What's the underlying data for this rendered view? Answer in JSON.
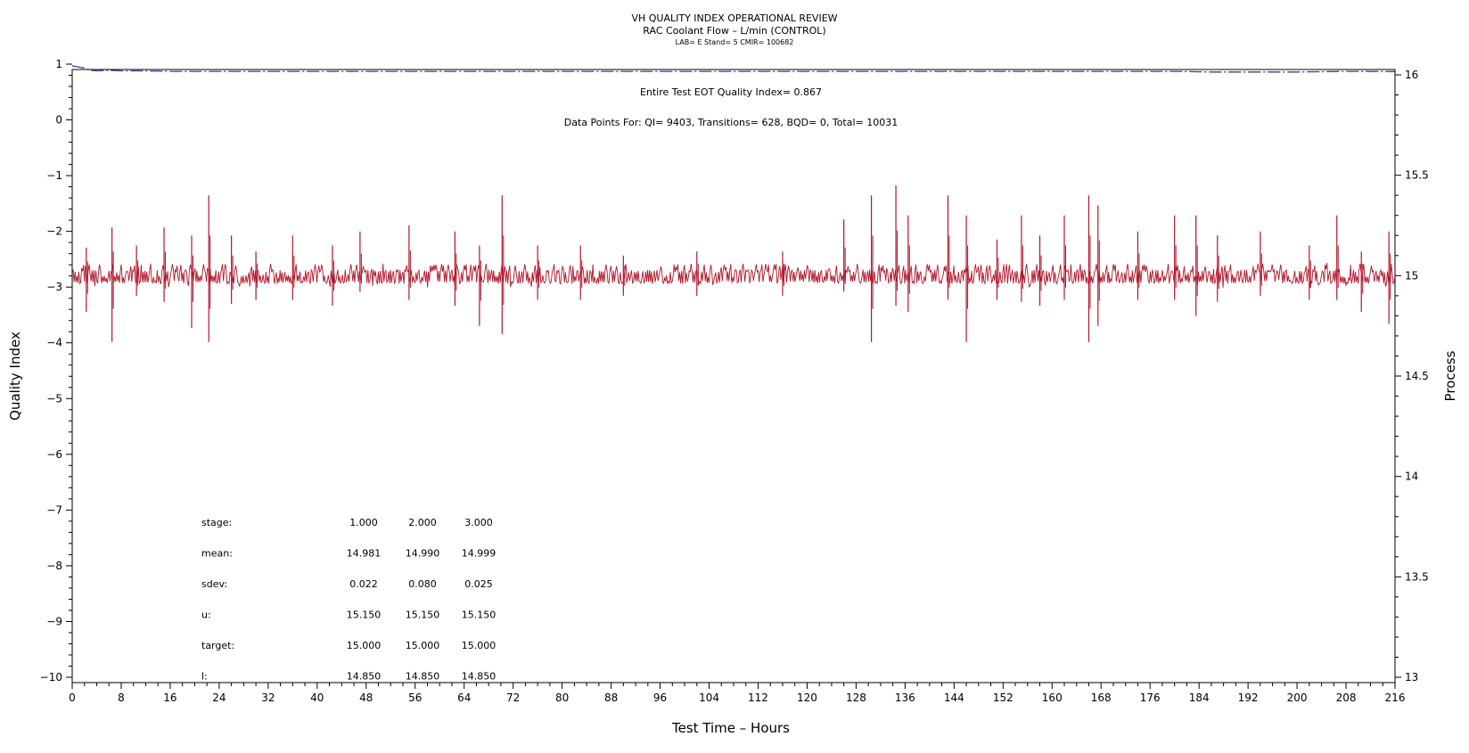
{
  "chart_data": {
    "type": "line",
    "title": "VH QUALITY INDEX OPERATIONAL REVIEW",
    "subtitle": "RAC Coolant Flow – L/min (CONTROL)",
    "subtitle2": "LAB= E Stand= 5 CMIR= 100682",
    "xlabel": "Test Time – Hours",
    "ylabel": "Quality Index",
    "y2label": "Process",
    "xlim": [
      0,
      216
    ],
    "ylim": [
      -10,
      1
    ],
    "y2lim": [
      13,
      16
    ],
    "x_ticks": [
      "0",
      "8",
      "16",
      "24",
      "32",
      "40",
      "48",
      "56",
      "64",
      "72",
      "80",
      "88",
      "96",
      "104",
      "112",
      "120",
      "128",
      "136",
      "144",
      "152",
      "160",
      "168",
      "176",
      "184",
      "192",
      "200",
      "208",
      "216"
    ],
    "y_ticks": [
      "1",
      "0",
      "−1",
      "−2",
      "−3",
      "−4",
      "−5",
      "−6",
      "−7",
      "−8",
      "−9",
      "−10"
    ],
    "y2_ticks": [
      "16",
      "15.5",
      "15",
      "14.5",
      "14",
      "13.5",
      "13"
    ],
    "annotations": {
      "eot": "Entire Test EOT Quality Index=    0.867",
      "points": "Data Points For: QI=  9403, Transitions=   628, BQD=     0, Total= 10031"
    },
    "stats_table": {
      "rows": [
        {
          "label": "stage:",
          "values": [
            "1.000",
            "2.000",
            "3.000"
          ]
        },
        {
          "label": "mean:",
          "values": [
            "14.981",
            "14.990",
            "14.999"
          ]
        },
        {
          "label": "sdev:",
          "values": [
            "0.022",
            "0.080",
            "0.025"
          ]
        },
        {
          "label": "u:",
          "values": [
            "15.150",
            "15.150",
            "15.150"
          ]
        },
        {
          "label": "target:",
          "values": [
            "15.000",
            "15.000",
            "15.000"
          ]
        },
        {
          "label": "l:",
          "values": [
            "14.850",
            "14.850",
            "14.850"
          ]
        }
      ]
    },
    "series": [
      {
        "axis": "left",
        "color": "#3a3aa0",
        "style": "dashed",
        "x": [
          0,
          1,
          2,
          3,
          4,
          6,
          8,
          12,
          16,
          20,
          24,
          30,
          40,
          60,
          80,
          100,
          120,
          140,
          160,
          170,
          180,
          186,
          190,
          200,
          208,
          216
        ],
        "y": [
          0.97,
          0.95,
          0.93,
          0.89,
          0.88,
          0.89,
          0.88,
          0.88,
          0.87,
          0.87,
          0.87,
          0.87,
          0.87,
          0.87,
          0.87,
          0.87,
          0.87,
          0.87,
          0.87,
          0.87,
          0.87,
          0.86,
          0.86,
          0.86,
          0.87,
          0.867
        ]
      },
      {
        "axis": "right",
        "color": "#b0172b",
        "style": "noisy",
        "baseline": 15.0,
        "band": [
          14.96,
          15.03
        ],
        "spikes": [
          {
            "x": 2.3,
            "hi": 15.14,
            "lo": 14.82
          },
          {
            "x": 6.5,
            "hi": 15.24,
            "lo": 14.67
          },
          {
            "x": 10.5,
            "hi": 15.15,
            "lo": 14.9
          },
          {
            "x": 15,
            "hi": 15.24,
            "lo": 14.87
          },
          {
            "x": 19.5,
            "hi": 15.2,
            "lo": 14.74
          },
          {
            "x": 22.3,
            "hi": 15.4,
            "lo": 14.67
          },
          {
            "x": 26,
            "hi": 15.2,
            "lo": 14.86
          },
          {
            "x": 30,
            "hi": 15.12,
            "lo": 14.88
          },
          {
            "x": 36,
            "hi": 15.2,
            "lo": 14.88
          },
          {
            "x": 42.5,
            "hi": 15.15,
            "lo": 14.85
          },
          {
            "x": 47,
            "hi": 15.22,
            "lo": 14.92
          },
          {
            "x": 55,
            "hi": 15.25,
            "lo": 14.88
          },
          {
            "x": 62.5,
            "hi": 15.22,
            "lo": 14.85
          },
          {
            "x": 66.5,
            "hi": 15.15,
            "lo": 14.75
          },
          {
            "x": 70.2,
            "hi": 15.4,
            "lo": 14.71
          },
          {
            "x": 76,
            "hi": 15.15,
            "lo": 14.88
          },
          {
            "x": 83,
            "hi": 15.15,
            "lo": 14.88
          },
          {
            "x": 90,
            "hi": 15.1,
            "lo": 14.9
          },
          {
            "x": 102,
            "hi": 15.12,
            "lo": 14.9
          },
          {
            "x": 116,
            "hi": 15.12,
            "lo": 14.9
          },
          {
            "x": 126,
            "hi": 15.28,
            "lo": 14.92
          },
          {
            "x": 130.5,
            "hi": 15.4,
            "lo": 14.67
          },
          {
            "x": 134.5,
            "hi": 15.45,
            "lo": 14.85
          },
          {
            "x": 136.5,
            "hi": 15.3,
            "lo": 14.82
          },
          {
            "x": 143,
            "hi": 15.4,
            "lo": 14.88
          },
          {
            "x": 146,
            "hi": 15.3,
            "lo": 14.67
          },
          {
            "x": 151,
            "hi": 15.18,
            "lo": 14.88
          },
          {
            "x": 155,
            "hi": 15.3,
            "lo": 14.87
          },
          {
            "x": 158,
            "hi": 15.2,
            "lo": 14.85
          },
          {
            "x": 162,
            "hi": 15.3,
            "lo": 14.88
          },
          {
            "x": 166,
            "hi": 15.4,
            "lo": 14.67
          },
          {
            "x": 167.5,
            "hi": 15.35,
            "lo": 14.75
          },
          {
            "x": 174,
            "hi": 15.22,
            "lo": 14.88
          },
          {
            "x": 180,
            "hi": 15.3,
            "lo": 14.88
          },
          {
            "x": 183.5,
            "hi": 15.3,
            "lo": 14.8
          },
          {
            "x": 187,
            "hi": 15.2,
            "lo": 14.87
          },
          {
            "x": 194,
            "hi": 15.22,
            "lo": 14.9
          },
          {
            "x": 202,
            "hi": 15.15,
            "lo": 14.88
          },
          {
            "x": 206.5,
            "hi": 15.3,
            "lo": 14.88
          },
          {
            "x": 210.5,
            "hi": 15.12,
            "lo": 14.82
          },
          {
            "x": 215,
            "hi": 15.22,
            "lo": 14.76
          }
        ]
      }
    ],
    "grid": false
  }
}
